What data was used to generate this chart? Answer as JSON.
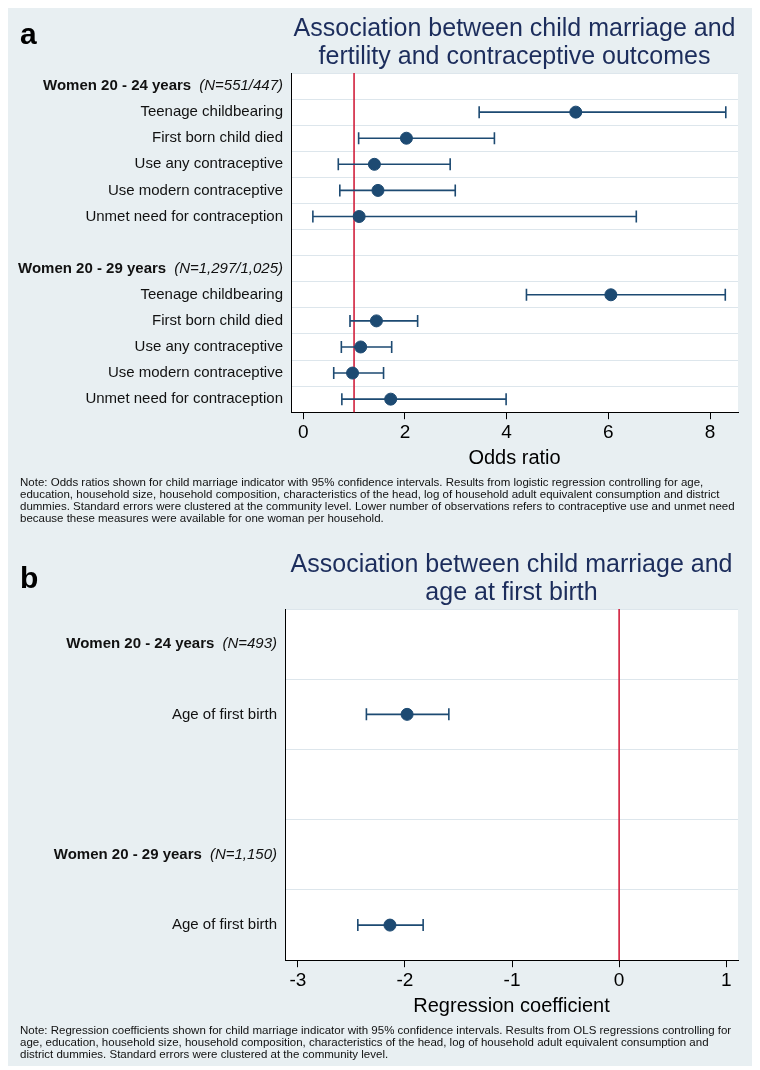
{
  "chart_data": [
    {
      "type": "scatter",
      "orientation": "horizontal",
      "title": "Association between child marriage and fertility and contraceptive outcomes",
      "xlabel": "Odds ratio",
      "categories": [
        "Women 20 - 24 years  (N=551/447)",
        "Teenage childbearing",
        "First born child died",
        "Use any contraceptive",
        "Use modern contraceptive",
        "Unmet need for contraception",
        null,
        "Women 20 - 29 years  (N=1,297/1,025)",
        "Teenage childbearing",
        "First born child died",
        "Use any contraceptive",
        "Use modern contraceptive",
        "Unmet need for contraception"
      ],
      "values": [
        null,
        5.36,
        2.03,
        1.4,
        1.47,
        1.1,
        null,
        null,
        6.05,
        1.44,
        1.13,
        0.97,
        1.72
      ],
      "errors": [
        null,
        [
          3.46,
          8.31
        ],
        [
          1.09,
          3.76
        ],
        [
          0.69,
          2.89
        ],
        [
          0.72,
          2.99
        ],
        [
          0.19,
          6.55
        ],
        null,
        null,
        [
          4.39,
          8.3
        ],
        [
          0.92,
          2.25
        ],
        [
          0.75,
          1.74
        ],
        [
          0.6,
          1.58
        ],
        [
          0.76,
          3.99
        ]
      ],
      "color": "#1d4a72",
      "marker": "circle",
      "grid": "y",
      "legend": false,
      "xlim": [
        -0.24,
        8.55
      ],
      "xticks": [
        0,
        2,
        4,
        6,
        8
      ],
      "ref_lines": [
        {
          "axis": "x",
          "value": 1,
          "color": "#d11f3c"
        }
      ],
      "annotations": [
        "a",
        "Note: Odds ratios shown for child marriage indicator with 95% confidence intervals. Results from logistic regression controlling for age, education, household size, household composition, characteristics of the head, log of household adult equivalent consumption and district dummies. Standard errors were clustered at the community level. Lower number of observations refers to contraceptive use and unmet need because these measures were available for one woman per household."
      ]
    },
    {
      "type": "scatter",
      "orientation": "horizontal",
      "title": "Association between child marriage and age at first birth",
      "xlabel": "Regression coefficient",
      "categories": [
        "Women 20 - 24 years  (N=493)",
        "Age of first birth",
        null,
        "Women 20 - 29 years  (N=1,150)",
        "Age of first birth"
      ],
      "values": [
        null,
        -1.98,
        null,
        null,
        -2.14
      ],
      "errors": [
        null,
        [
          -2.36,
          -1.59
        ],
        null,
        null,
        [
          -2.44,
          -1.83
        ]
      ],
      "color": "#1d4a72",
      "marker": "circle",
      "grid": "y",
      "legend": false,
      "xlim": [
        -3.12,
        1.11
      ],
      "xticks": [
        -3,
        -2,
        -1,
        0,
        1
      ],
      "ref_lines": [
        {
          "axis": "x",
          "value": 0,
          "color": "#d11f3c"
        }
      ],
      "annotations": [
        "b",
        "Note: Regression coefficients shown for child marriage indicator with 95% confidence intervals. Results from OLS regressions controlling for age, education, household size, household composition, characteristics of the head, log of household adult equivalent consumption and district dummies. Standard errors were clustered at the community level."
      ]
    }
  ]
}
